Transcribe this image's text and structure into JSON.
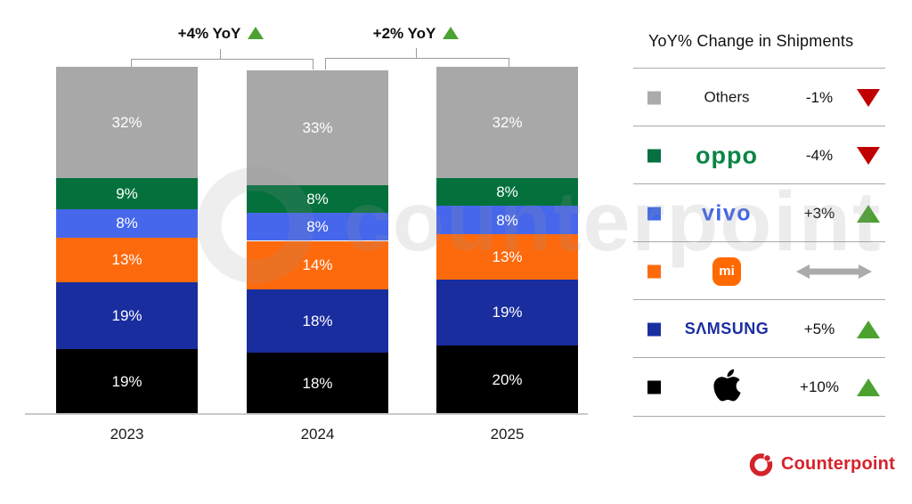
{
  "chart_data": {
    "type": "stacked-bar",
    "title": "",
    "categories": [
      "2023",
      "2024",
      "2025"
    ],
    "unit": "%",
    "ylim": [
      0,
      100
    ],
    "grid": false,
    "series": [
      {
        "name": "Apple",
        "color": "#000000",
        "values": [
          19,
          18,
          20
        ]
      },
      {
        "name": "Samsung",
        "color": "#192D9E",
        "values": [
          19,
          18,
          19
        ]
      },
      {
        "name": "Xiaomi",
        "color": "#FD6A0D",
        "values": [
          13,
          14,
          13
        ]
      },
      {
        "name": "vivo",
        "color": "#4667EC",
        "values": [
          8,
          8,
          8
        ]
      },
      {
        "name": "OPPO",
        "color": "#04713D",
        "values": [
          9,
          8,
          8
        ]
      },
      {
        "name": "Others",
        "color": "#A8A8A8",
        "values": [
          32,
          33,
          32
        ]
      }
    ],
    "annotations": [
      {
        "label": "+4% YoY",
        "trend": "up",
        "between": [
          "2023",
          "2024"
        ]
      },
      {
        "label": "+2% YoY",
        "trend": "up",
        "between": [
          "2024",
          "2025"
        ]
      }
    ]
  },
  "legend": {
    "title": "YoY% Change in Shipments",
    "rows": [
      {
        "brand": "Others",
        "label": "Others",
        "swatch": "#ABABAB",
        "change": "-1%",
        "trend": "down"
      },
      {
        "brand": "OPPO",
        "label": "oppo",
        "swatch": "#067040",
        "change": "-4%",
        "trend": "down"
      },
      {
        "brand": "vivo",
        "label": "vivo",
        "swatch": "#4169E8",
        "change": "+3%",
        "trend": "up"
      },
      {
        "brand": "Xiaomi",
        "label": "mi",
        "logo": "mi-icon",
        "swatch": "#FD6A0D",
        "change": "",
        "trend": "flat"
      },
      {
        "brand": "Samsung",
        "label": "SΛMSUNG",
        "swatch": "#1B2EA0",
        "change": "+5%",
        "trend": "up"
      },
      {
        "brand": "Apple",
        "label": "",
        "logo": "apple-icon",
        "swatch": "#000000",
        "change": "+10%",
        "trend": "up"
      }
    ],
    "trend_colors": {
      "up": "#4CA230",
      "down": "#C00000",
      "flat": "#ABABAB"
    }
  },
  "watermark": "counterpoint",
  "footer": {
    "brand": "Counterpoint",
    "color": "#D5232B"
  }
}
